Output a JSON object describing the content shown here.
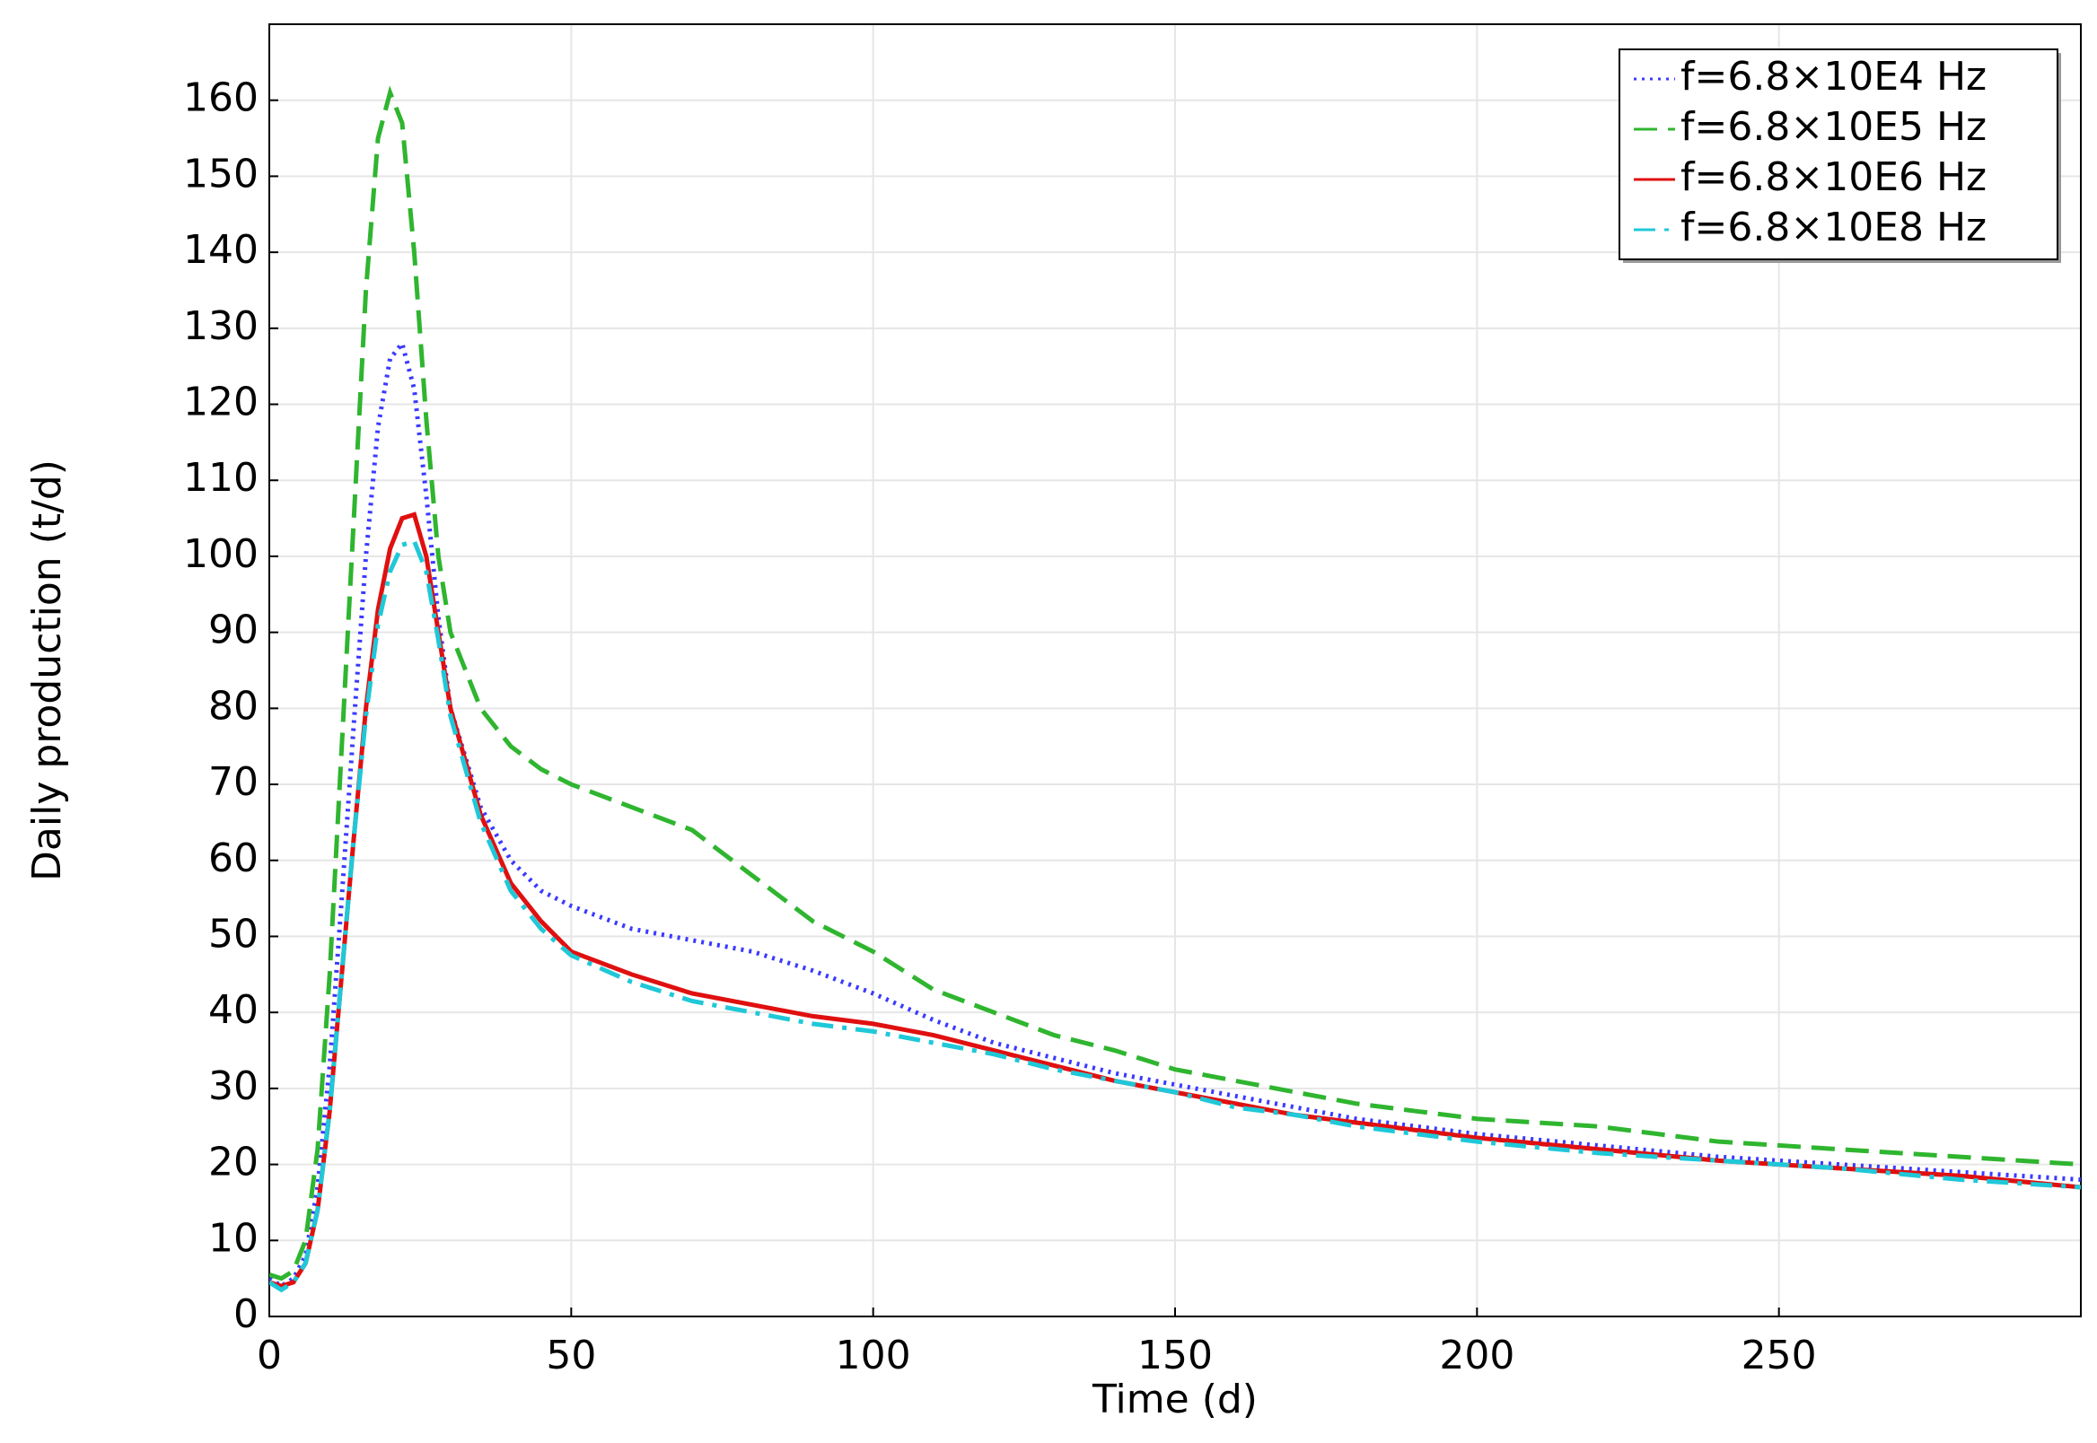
{
  "chart_data": {
    "type": "line",
    "xlabel": "Time (d)",
    "ylabel": "Daily production (t/d)",
    "x": [
      0,
      2,
      4,
      6,
      8,
      10,
      12,
      14,
      16,
      18,
      20,
      22,
      24,
      26,
      28,
      30,
      35,
      40,
      45,
      50,
      60,
      70,
      80,
      90,
      100,
      110,
      120,
      130,
      140,
      150,
      160,
      170,
      180,
      190,
      200,
      220,
      240,
      260,
      280,
      300
    ],
    "series": [
      {
        "name": "f=6.8×10E4 Hz",
        "color": "#3a3aff",
        "linestyle": "dotted",
        "values": [
          5,
          4,
          5,
          8,
          17,
          33,
          55,
          78,
          100,
          117,
          126,
          128,
          122,
          108,
          92,
          80,
          67,
          60,
          56,
          54,
          51,
          49.5,
          48,
          45.5,
          42.5,
          39,
          36,
          34,
          32,
          30.5,
          29,
          27.5,
          26,
          25,
          24,
          22.5,
          21,
          20,
          19,
          18
        ]
      },
      {
        "name": "f=6.8×10E5 Hz",
        "color": "#2fb52f",
        "linestyle": "dashed",
        "values": [
          5.5,
          5,
          6,
          10,
          22,
          45,
          75,
          105,
          135,
          155,
          161,
          157,
          140,
          118,
          100,
          90,
          80,
          75,
          72,
          70,
          67,
          64,
          58,
          52,
          48,
          43,
          40,
          37,
          35,
          32.5,
          31,
          29.5,
          28,
          27,
          26,
          25,
          23,
          22,
          21,
          20
        ]
      },
      {
        "name": "f=6.8×10E6 Hz",
        "color": "#e01010",
        "linestyle": "solid",
        "values": [
          4.5,
          4,
          4.5,
          7,
          14,
          27,
          45,
          63,
          80,
          93,
          101,
          105,
          105.5,
          100,
          90,
          80,
          66,
          57,
          52,
          48,
          45,
          42.5,
          41,
          39.5,
          38.5,
          37,
          35,
          33,
          31,
          29.5,
          28,
          26.5,
          25.5,
          24.5,
          23.5,
          22,
          20.5,
          19.5,
          18.5,
          17
        ]
      },
      {
        "name": "f=6.8×10E8 Hz",
        "color": "#1fc8d8",
        "linestyle": "dashdot",
        "values": [
          4.5,
          3.5,
          4.5,
          7,
          14,
          27,
          45,
          63,
          79,
          91,
          98,
          101.5,
          102,
          98,
          89,
          79,
          65,
          56,
          51,
          47.5,
          44,
          41.5,
          40,
          38.5,
          37.5,
          36,
          34.5,
          32.5,
          31,
          29.5,
          27.5,
          26.5,
          25,
          24,
          23,
          21.5,
          20.5,
          19.5,
          18,
          17
        ]
      }
    ],
    "xlim": [
      0,
      300
    ],
    "ylim": [
      0,
      170
    ],
    "xticks": [
      0,
      50,
      100,
      150,
      200,
      250
    ],
    "yticks": [
      0,
      10,
      20,
      30,
      40,
      50,
      60,
      70,
      80,
      90,
      100,
      110,
      120,
      130,
      140,
      150,
      160
    ],
    "grid": true,
    "legend": "upper right"
  }
}
